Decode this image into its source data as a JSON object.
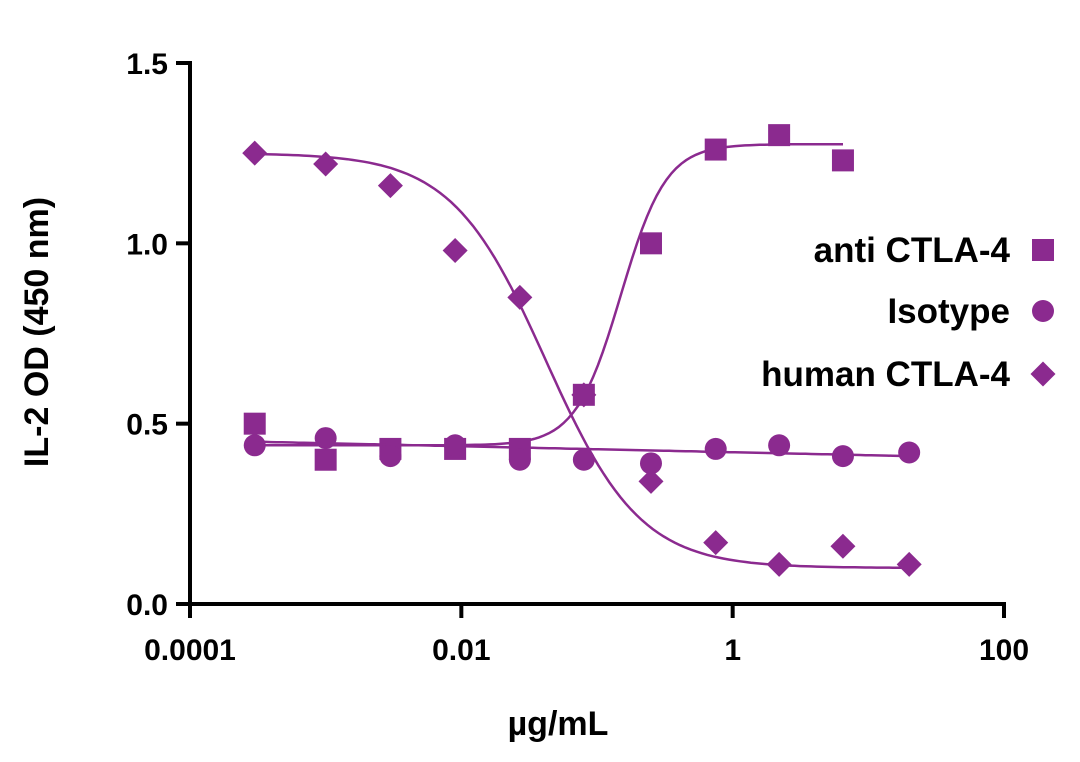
{
  "colors": {
    "series": "#8b2a8f",
    "axis": "#000000",
    "background": "#ffffff"
  },
  "chart_data": {
    "type": "scatter",
    "title": "",
    "xlabel": "µg/mL",
    "ylabel": "IL-2 OD (450 nm)",
    "xscale": "log",
    "xlim": [
      0.0001,
      100
    ],
    "ylim": [
      0.0,
      1.5
    ],
    "xticks": [
      {
        "value": 0.0001,
        "label": "0.0001"
      },
      {
        "value": 0.01,
        "label": "0.01"
      },
      {
        "value": 1,
        "label": "1"
      },
      {
        "value": 100,
        "label": "100"
      }
    ],
    "yticks": [
      {
        "value": 0.0,
        "label": "0.0"
      },
      {
        "value": 0.5,
        "label": "0.5"
      },
      {
        "value": 1.0,
        "label": "1.0"
      },
      {
        "value": 1.5,
        "label": "1.5"
      }
    ],
    "grid": false,
    "legend_position": "right",
    "series": [
      {
        "name": "anti CTLA-4",
        "marker": "square",
        "x": [
          0.0003,
          0.001,
          0.003,
          0.009,
          0.027,
          0.08,
          0.25,
          0.75,
          2.2,
          6.5
        ],
        "y": [
          0.5,
          0.4,
          0.43,
          0.43,
          0.43,
          0.58,
          1.0,
          1.26,
          1.3,
          1.23
        ],
        "fit": {
          "model": "4PL",
          "bottom": 0.44,
          "top": 1.275,
          "ec50": 0.15,
          "hill": 2.6
        }
      },
      {
        "name": "Isotype",
        "marker": "circle",
        "x": [
          0.0003,
          0.001,
          0.003,
          0.009,
          0.027,
          0.08,
          0.25,
          0.75,
          2.2,
          6.5,
          20
        ],
        "y": [
          0.44,
          0.46,
          0.41,
          0.44,
          0.4,
          0.4,
          0.39,
          0.43,
          0.44,
          0.41,
          0.42
        ],
        "fit": {
          "model": "line",
          "start": 0.45,
          "end": 0.41
        }
      },
      {
        "name": "human CTLA-4",
        "marker": "diamond",
        "x": [
          0.0003,
          0.001,
          0.003,
          0.009,
          0.027,
          0.08,
          0.25,
          0.75,
          2.2,
          6.5,
          20
        ],
        "y": [
          1.25,
          1.22,
          1.16,
          0.98,
          0.85,
          0.58,
          0.34,
          0.17,
          0.11,
          0.16,
          0.11
        ],
        "fit": {
          "model": "4PL",
          "bottom": 0.1,
          "top": 1.25,
          "ec50": 0.042,
          "hill": -1.25
        }
      }
    ]
  }
}
